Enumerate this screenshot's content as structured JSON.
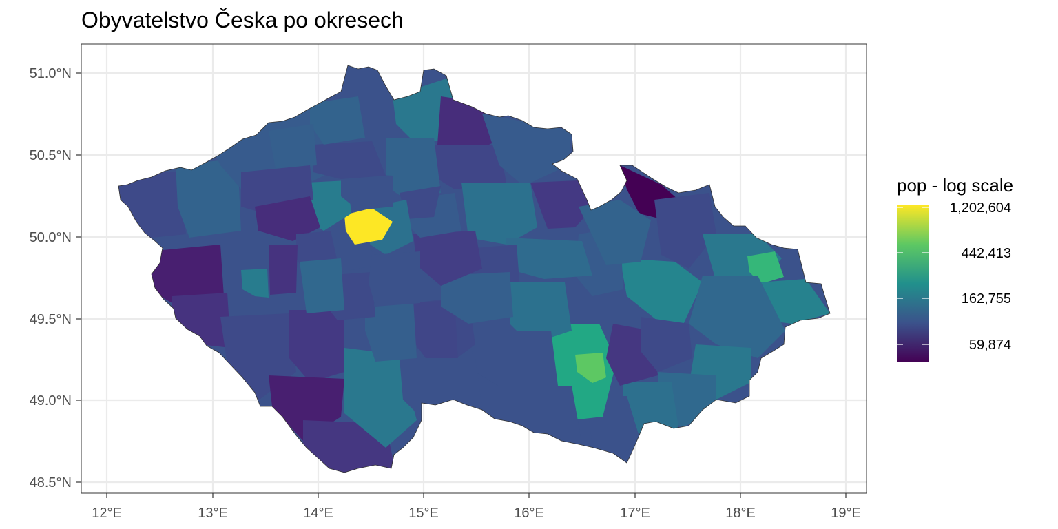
{
  "map": {
    "title": "Obyvatelstvo Česka po okresech",
    "lon_ticks": [
      "12°E",
      "13°E",
      "14°E",
      "15°E",
      "16°E",
      "17°E",
      "18°E",
      "19°E"
    ],
    "lat_ticks": [
      "51.0°N",
      "50.5°N",
      "50.0°N",
      "49.5°N",
      "49.0°N",
      "48.5°N"
    ],
    "legend": {
      "title": "pop - log scale",
      "breaks": [
        "1,202,604",
        "442,413",
        "162,755",
        "59,874"
      ]
    },
    "colors": {
      "panel_border": "#333333",
      "grid": "#ebebeb",
      "viridis_low": "#440154",
      "viridis_mid_low": "#3b528b",
      "viridis_mid": "#21908c",
      "viridis_mid_high": "#5dc863",
      "viridis_high": "#fde725"
    }
  }
}
